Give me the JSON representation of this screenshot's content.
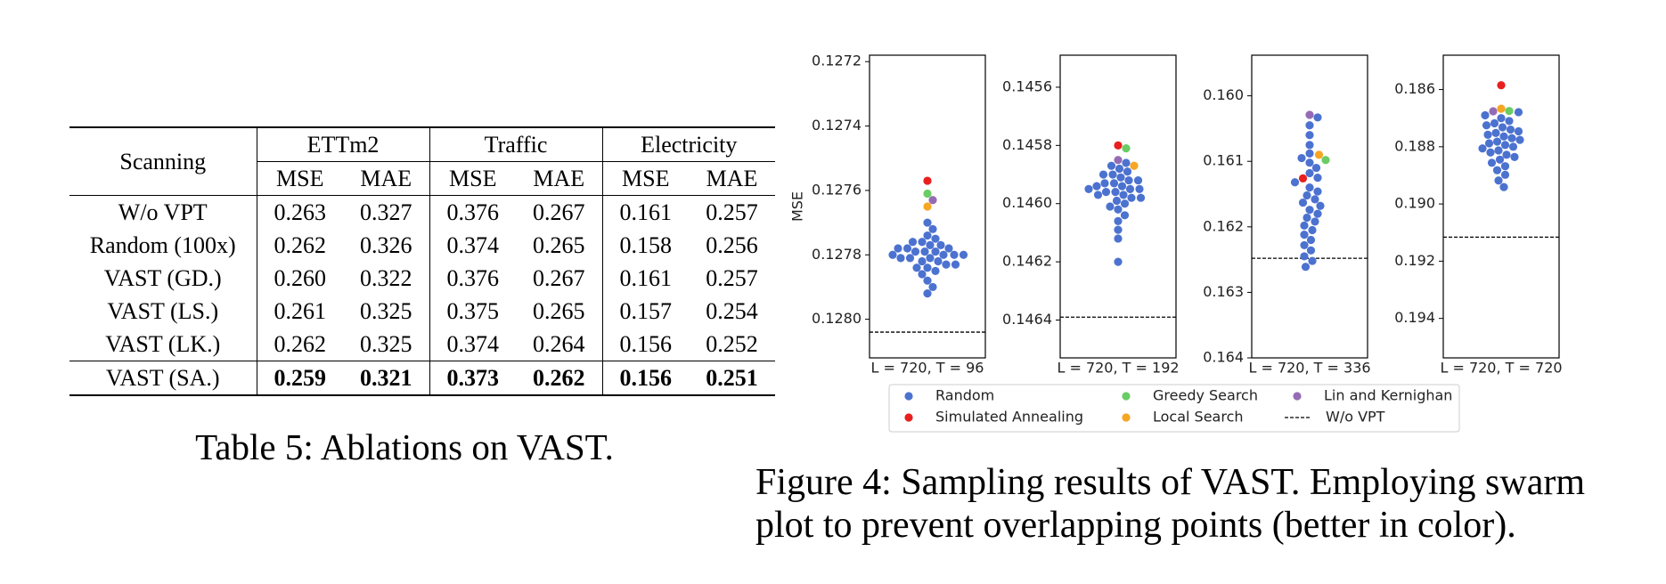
{
  "table": {
    "header": "Scanning",
    "groups": [
      "ETTm2",
      "Traffic",
      "Electricity"
    ],
    "subheaders": [
      "MSE",
      "MAE",
      "MSE",
      "MAE",
      "MSE",
      "MAE"
    ],
    "rows": [
      {
        "label": "W/o VPT",
        "cells": [
          "0.263",
          "0.327",
          "0.376",
          "0.267",
          "0.161",
          "0.257"
        ]
      },
      {
        "label": "Random (100x)",
        "cells": [
          "0.262",
          "0.326",
          "0.374",
          "0.265",
          "0.158",
          "0.256"
        ]
      },
      {
        "label": "VAST (GD.)",
        "cells": [
          "0.260",
          "0.322",
          "0.376",
          "0.267",
          "0.161",
          "0.257"
        ]
      },
      {
        "label": "VAST (LS.)",
        "cells": [
          "0.261",
          "0.325",
          "0.375",
          "0.265",
          "0.157",
          "0.254"
        ]
      },
      {
        "label": "VAST (LK.)",
        "cells": [
          "0.262",
          "0.325",
          "0.374",
          "0.264",
          "0.156",
          "0.252"
        ]
      },
      {
        "label": "VAST (SA.)",
        "cells": [
          "0.259",
          "0.321",
          "0.373",
          "0.262",
          "0.156",
          "0.251"
        ],
        "bold": true
      }
    ]
  },
  "table_caption": "Table 5: Ablations on VAST.",
  "chart_data": {
    "type": "swarm",
    "ylabel": "MSE",
    "series": [
      {
        "name": "Random",
        "color": "#4c72d0"
      },
      {
        "name": "Simulated Annealing",
        "color": "#e8201f"
      },
      {
        "name": "Greedy Search",
        "color": "#6acc64"
      },
      {
        "name": "Local Search",
        "color": "#f5a623"
      },
      {
        "name": "Lin and Kernighan",
        "color": "#956cb4"
      }
    ],
    "baseline": {
      "name": "W/o VPT",
      "color": "#000000"
    },
    "panels": [
      {
        "xlabel": "L = 720, T = 96",
        "ylim": [
          0.12718,
          0.12812
        ],
        "y_inverted": true,
        "yticks": [
          0.1272,
          0.1274,
          0.1276,
          0.1278,
          {
            "value": 0.128,
            "label": "0.1280"
          }
        ],
        "values": [
          [
            0.1277,
            0.12772,
            0.12774,
            0.12775,
            0.12776,
            0.12776,
            0.12777,
            0.12777,
            0.12778,
            0.12778,
            0.12778,
            0.12779,
            0.12779,
            0.12779,
            0.1278,
            0.1278,
            0.1278,
            0.1278,
            0.12781,
            0.12781,
            0.12781,
            0.12782,
            0.12782,
            0.12783,
            0.12783,
            0.12784,
            0.12784,
            0.12785,
            0.12786,
            0.12788,
            0.1279,
            0.12792
          ],
          [
            0.12757
          ],
          [
            0.12761
          ],
          [
            0.12765
          ],
          [
            0.12763
          ]
        ],
        "baseline": 0.12804
      },
      {
        "xlabel": "L = 720, T = 192",
        "ylim": [
          0.14549,
          0.14653
        ],
        "y_inverted": true,
        "yticks": [
          0.1456,
          0.1458,
          {
            "value": 0.146,
            "label": "0.1460"
          },
          0.1462,
          0.1464
        ],
        "values": [
          [
            0.14586,
            0.14587,
            0.14588,
            0.14589,
            0.1459,
            0.1459,
            0.14591,
            0.14592,
            0.14592,
            0.14593,
            0.14593,
            0.14594,
            0.14594,
            0.14595,
            0.14595,
            0.14595,
            0.14596,
            0.14596,
            0.14597,
            0.14597,
            0.14598,
            0.14598,
            0.14599,
            0.146,
            0.14601,
            0.14602,
            0.14604,
            0.14606,
            0.14609,
            0.14612,
            0.1462
          ],
          [
            0.1458
          ],
          [
            0.14581
          ],
          [
            0.14587
          ],
          [
            0.14585
          ]
        ],
        "baseline": 0.14639
      },
      {
        "xlabel": "L = 720, T = 336",
        "ylim": [
          0.15938,
          0.164
        ],
        "y_inverted": true,
        "yticks": [
          {
            "value": 0.16,
            "label": "0.160"
          },
          0.161,
          0.162,
          0.163,
          0.164
        ],
        "values": [
          [
            0.16033,
            0.16045,
            0.1606,
            0.16075,
            0.16088,
            0.16095,
            0.16102,
            0.1611,
            0.16118,
            0.16125,
            0.16132,
            0.1614,
            0.16146,
            0.16152,
            0.16158,
            0.16163,
            0.16168,
            0.16174,
            0.1618,
            0.16186,
            0.16192,
            0.16198,
            0.16205,
            0.16212,
            0.1622,
            0.16228,
            0.16236,
            0.16245,
            0.16252,
            0.16261
          ],
          [
            0.16126
          ],
          [
            0.16098
          ],
          [
            0.1609
          ],
          [
            0.16029
          ]
        ],
        "baseline": 0.16248
      },
      {
        "xlabel": "L = 720, T = 720",
        "ylim": [
          0.1848,
          0.19538
        ],
        "y_inverted": true,
        "yticks": [
          0.186,
          0.188,
          {
            "value": 0.19,
            "label": "0.190"
          },
          0.192,
          0.194
        ],
        "values": [
          [
            0.18679,
            0.1869,
            0.187,
            0.1871,
            0.18718,
            0.18725,
            0.18732,
            0.1874,
            0.18746,
            0.18752,
            0.18758,
            0.18764,
            0.1877,
            0.18776,
            0.18782,
            0.18788,
            0.18794,
            0.188,
            0.18806,
            0.18813,
            0.1882,
            0.18828,
            0.18836,
            0.18845,
            0.18856,
            0.18868,
            0.18882,
            0.18898,
            0.18918,
            0.18941
          ],
          [
            0.18585
          ],
          [
            0.18675
          ],
          [
            0.18667
          ],
          [
            0.18676
          ]
        ],
        "baseline": 0.19116
      }
    ]
  },
  "figure_caption": [
    "Figure 4: Sampling results of VAST. Employing swarm",
    "plot to prevent overlapping points (better in color)."
  ]
}
